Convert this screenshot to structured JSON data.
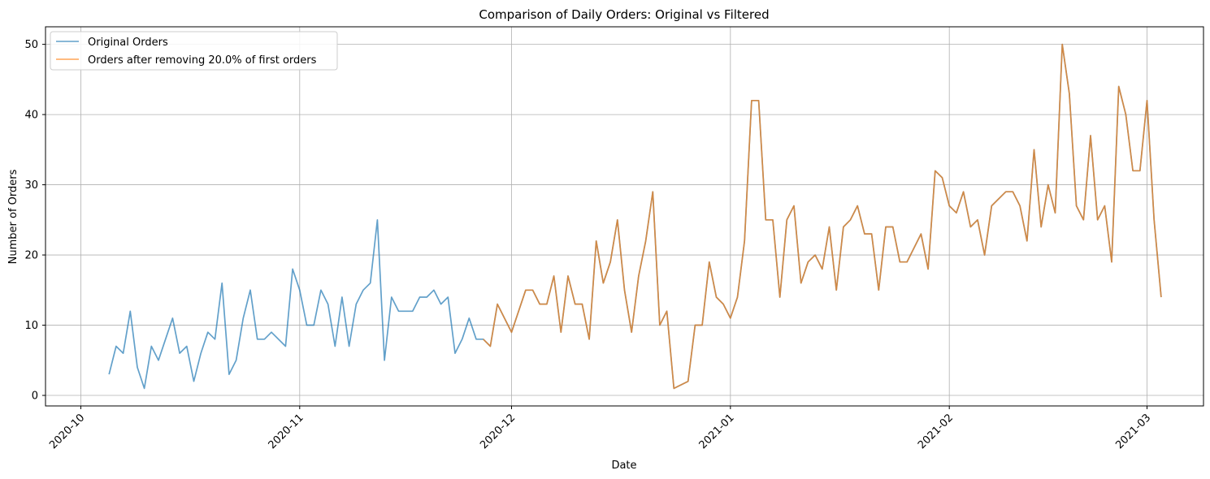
{
  "chart_data": {
    "type": "line",
    "title": "Comparison of Daily Orders: Original vs Filtered",
    "xlabel": "Date",
    "ylabel": "Number of Orders",
    "x_axis": {
      "type": "date",
      "range": [
        "2020-09-26",
        "2021-03-09"
      ],
      "ticks": [
        "2020-10-01",
        "2020-11-01",
        "2020-12-01",
        "2021-01-01",
        "2021-02-01",
        "2021-03-01"
      ],
      "tick_labels": [
        "2020-10",
        "2020-11",
        "2020-12",
        "2021-01",
        "2021-02",
        "2021-03"
      ],
      "tick_rotation": 45
    },
    "y_axis": {
      "range": [
        -1.5,
        52.5
      ],
      "ticks": [
        0,
        10,
        20,
        30,
        40,
        50
      ],
      "tick_labels": [
        "0",
        "10",
        "20",
        "30",
        "40",
        "50"
      ]
    },
    "grid": true,
    "legend_position": "top-left",
    "series": [
      {
        "name": "Original Orders",
        "color": "#1f77b4",
        "points": [
          [
            "2020-10-05",
            3
          ],
          [
            "2020-10-06",
            7
          ],
          [
            "2020-10-07",
            6
          ],
          [
            "2020-10-08",
            12
          ],
          [
            "2020-10-09",
            4
          ],
          [
            "2020-10-10",
            1
          ],
          [
            "2020-10-11",
            7
          ],
          [
            "2020-10-12",
            5
          ],
          [
            "2020-10-13",
            8
          ],
          [
            "2020-10-14",
            11
          ],
          [
            "2020-10-15",
            6
          ],
          [
            "2020-10-16",
            7
          ],
          [
            "2020-10-17",
            2
          ],
          [
            "2020-10-18",
            6
          ],
          [
            "2020-10-19",
            9
          ],
          [
            "2020-10-20",
            8
          ],
          [
            "2020-10-21",
            16
          ],
          [
            "2020-10-22",
            3
          ],
          [
            "2020-10-23",
            5
          ],
          [
            "2020-10-24",
            11
          ],
          [
            "2020-10-25",
            15
          ],
          [
            "2020-10-26",
            8
          ],
          [
            "2020-10-27",
            8
          ],
          [
            "2020-10-28",
            9
          ],
          [
            "2020-10-30",
            7
          ],
          [
            "2020-10-31",
            18
          ],
          [
            "2020-11-01",
            15
          ],
          [
            "2020-11-02",
            10
          ],
          [
            "2020-11-03",
            10
          ],
          [
            "2020-11-04",
            15
          ],
          [
            "2020-11-05",
            13
          ],
          [
            "2020-11-06",
            7
          ],
          [
            "2020-11-07",
            14
          ],
          [
            "2020-11-08",
            7
          ],
          [
            "2020-11-09",
            13
          ],
          [
            "2020-11-10",
            15
          ],
          [
            "2020-11-11",
            16
          ],
          [
            "2020-11-12",
            25
          ],
          [
            "2020-11-13",
            5
          ],
          [
            "2020-11-14",
            14
          ],
          [
            "2020-11-15",
            12
          ],
          [
            "2020-11-17",
            12
          ],
          [
            "2020-11-18",
            14
          ],
          [
            "2020-11-19",
            14
          ],
          [
            "2020-11-20",
            15
          ],
          [
            "2020-11-21",
            13
          ],
          [
            "2020-11-22",
            14
          ],
          [
            "2020-11-23",
            6
          ],
          [
            "2020-11-24",
            8
          ],
          [
            "2020-11-25",
            11
          ],
          [
            "2020-11-26",
            8
          ],
          [
            "2020-11-27",
            8
          ],
          [
            "2020-11-28",
            7
          ],
          [
            "2020-11-29",
            13
          ],
          [
            "2020-12-01",
            9
          ],
          [
            "2020-12-03",
            15
          ],
          [
            "2020-12-04",
            15
          ],
          [
            "2020-12-05",
            13
          ],
          [
            "2020-12-06",
            13
          ],
          [
            "2020-12-07",
            17
          ],
          [
            "2020-12-08",
            9
          ],
          [
            "2020-12-09",
            17
          ],
          [
            "2020-12-10",
            13
          ],
          [
            "2020-12-11",
            13
          ],
          [
            "2020-12-12",
            8
          ],
          [
            "2020-12-13",
            22
          ],
          [
            "2020-12-14",
            16
          ],
          [
            "2020-12-15",
            19
          ],
          [
            "2020-12-16",
            25
          ],
          [
            "2020-12-17",
            15
          ],
          [
            "2020-12-18",
            9
          ],
          [
            "2020-12-19",
            17
          ],
          [
            "2020-12-20",
            22
          ],
          [
            "2020-12-21",
            29
          ],
          [
            "2020-12-22",
            10
          ],
          [
            "2020-12-23",
            12
          ],
          [
            "2020-12-24",
            1
          ],
          [
            "2020-12-26",
            2
          ],
          [
            "2020-12-27",
            10
          ],
          [
            "2020-12-28",
            10
          ],
          [
            "2020-12-29",
            19
          ],
          [
            "2020-12-30",
            14
          ],
          [
            "2020-12-31",
            13
          ],
          [
            "2021-01-01",
            11
          ],
          [
            "2021-01-02",
            14
          ],
          [
            "2021-01-03",
            22
          ],
          [
            "2021-01-04",
            42
          ],
          [
            "2021-01-05",
            42
          ],
          [
            "2021-01-06",
            25
          ],
          [
            "2021-01-07",
            25
          ],
          [
            "2021-01-08",
            14
          ],
          [
            "2021-01-09",
            25
          ],
          [
            "2021-01-10",
            27
          ],
          [
            "2021-01-11",
            16
          ],
          [
            "2021-01-12",
            19
          ],
          [
            "2021-01-13",
            20
          ],
          [
            "2021-01-14",
            18
          ],
          [
            "2021-01-15",
            24
          ],
          [
            "2021-01-16",
            15
          ],
          [
            "2021-01-17",
            24
          ],
          [
            "2021-01-18",
            25
          ],
          [
            "2021-01-19",
            27
          ],
          [
            "2021-01-20",
            23
          ],
          [
            "2021-01-21",
            23
          ],
          [
            "2021-01-22",
            15
          ],
          [
            "2021-01-23",
            24
          ],
          [
            "2021-01-24",
            24
          ],
          [
            "2021-01-25",
            19
          ],
          [
            "2021-01-26",
            19
          ],
          [
            "2021-01-28",
            23
          ],
          [
            "2021-01-29",
            18
          ],
          [
            "2021-01-30",
            32
          ],
          [
            "2021-01-31",
            31
          ],
          [
            "2021-02-01",
            27
          ],
          [
            "2021-02-02",
            26
          ],
          [
            "2021-02-03",
            29
          ],
          [
            "2021-02-04",
            24
          ],
          [
            "2021-02-05",
            25
          ],
          [
            "2021-02-06",
            20
          ],
          [
            "2021-02-07",
            27
          ],
          [
            "2021-02-09",
            29
          ],
          [
            "2021-02-10",
            29
          ],
          [
            "2021-02-11",
            27
          ],
          [
            "2021-02-12",
            22
          ],
          [
            "2021-02-13",
            35
          ],
          [
            "2021-02-14",
            24
          ],
          [
            "2021-02-15",
            30
          ],
          [
            "2021-02-16",
            26
          ],
          [
            "2021-02-17",
            50
          ],
          [
            "2021-02-18",
            43
          ],
          [
            "2021-02-19",
            27
          ],
          [
            "2021-02-20",
            25
          ],
          [
            "2021-02-21",
            37
          ],
          [
            "2021-02-22",
            25
          ],
          [
            "2021-02-23",
            27
          ],
          [
            "2021-02-24",
            19
          ],
          [
            "2021-02-25",
            44
          ],
          [
            "2021-02-26",
            40
          ],
          [
            "2021-02-27",
            32
          ],
          [
            "2021-02-28",
            32
          ],
          [
            "2021-03-01",
            42
          ],
          [
            "2021-03-02",
            25
          ],
          [
            "2021-03-03",
            14
          ]
        ]
      },
      {
        "name": "Orders after removing 20.0% of first orders",
        "color": "#ff7f0e",
        "points": [
          [
            "2020-11-27",
            8
          ],
          [
            "2020-11-28",
            7
          ],
          [
            "2020-11-29",
            13
          ],
          [
            "2020-12-01",
            9
          ],
          [
            "2020-12-03",
            15
          ],
          [
            "2020-12-04",
            15
          ],
          [
            "2020-12-05",
            13
          ],
          [
            "2020-12-06",
            13
          ],
          [
            "2020-12-07",
            17
          ],
          [
            "2020-12-08",
            9
          ],
          [
            "2020-12-09",
            17
          ],
          [
            "2020-12-10",
            13
          ],
          [
            "2020-12-11",
            13
          ],
          [
            "2020-12-12",
            8
          ],
          [
            "2020-12-13",
            22
          ],
          [
            "2020-12-14",
            16
          ],
          [
            "2020-12-15",
            19
          ],
          [
            "2020-12-16",
            25
          ],
          [
            "2020-12-17",
            15
          ],
          [
            "2020-12-18",
            9
          ],
          [
            "2020-12-19",
            17
          ],
          [
            "2020-12-20",
            22
          ],
          [
            "2020-12-21",
            29
          ],
          [
            "2020-12-22",
            10
          ],
          [
            "2020-12-23",
            12
          ],
          [
            "2020-12-24",
            1
          ],
          [
            "2020-12-26",
            2
          ],
          [
            "2020-12-27",
            10
          ],
          [
            "2020-12-28",
            10
          ],
          [
            "2020-12-29",
            19
          ],
          [
            "2020-12-30",
            14
          ],
          [
            "2020-12-31",
            13
          ],
          [
            "2021-01-01",
            11
          ],
          [
            "2021-01-02",
            14
          ],
          [
            "2021-01-03",
            22
          ],
          [
            "2021-01-04",
            42
          ],
          [
            "2021-01-05",
            42
          ],
          [
            "2021-01-06",
            25
          ],
          [
            "2021-01-07",
            25
          ],
          [
            "2021-01-08",
            14
          ],
          [
            "2021-01-09",
            25
          ],
          [
            "2021-01-10",
            27
          ],
          [
            "2021-01-11",
            16
          ],
          [
            "2021-01-12",
            19
          ],
          [
            "2021-01-13",
            20
          ],
          [
            "2021-01-14",
            18
          ],
          [
            "2021-01-15",
            24
          ],
          [
            "2021-01-16",
            15
          ],
          [
            "2021-01-17",
            24
          ],
          [
            "2021-01-18",
            25
          ],
          [
            "2021-01-19",
            27
          ],
          [
            "2021-01-20",
            23
          ],
          [
            "2021-01-21",
            23
          ],
          [
            "2021-01-22",
            15
          ],
          [
            "2021-01-23",
            24
          ],
          [
            "2021-01-24",
            24
          ],
          [
            "2021-01-25",
            19
          ],
          [
            "2021-01-26",
            19
          ],
          [
            "2021-01-28",
            23
          ],
          [
            "2021-01-29",
            18
          ],
          [
            "2021-01-30",
            32
          ],
          [
            "2021-01-31",
            31
          ],
          [
            "2021-02-01",
            27
          ],
          [
            "2021-02-02",
            26
          ],
          [
            "2021-02-03",
            29
          ],
          [
            "2021-02-04",
            24
          ],
          [
            "2021-02-05",
            25
          ],
          [
            "2021-02-06",
            20
          ],
          [
            "2021-02-07",
            27
          ],
          [
            "2021-02-09",
            29
          ],
          [
            "2021-02-10",
            29
          ],
          [
            "2021-02-11",
            27
          ],
          [
            "2021-02-12",
            22
          ],
          [
            "2021-02-13",
            35
          ],
          [
            "2021-02-14",
            24
          ],
          [
            "2021-02-15",
            30
          ],
          [
            "2021-02-16",
            26
          ],
          [
            "2021-02-17",
            50
          ],
          [
            "2021-02-18",
            43
          ],
          [
            "2021-02-19",
            27
          ],
          [
            "2021-02-20",
            25
          ],
          [
            "2021-02-21",
            37
          ],
          [
            "2021-02-22",
            25
          ],
          [
            "2021-02-23",
            27
          ],
          [
            "2021-02-24",
            19
          ],
          [
            "2021-02-25",
            44
          ],
          [
            "2021-02-26",
            40
          ],
          [
            "2021-02-27",
            32
          ],
          [
            "2021-02-28",
            32
          ],
          [
            "2021-03-01",
            42
          ],
          [
            "2021-03-02",
            25
          ],
          [
            "2021-03-03",
            14
          ]
        ]
      }
    ]
  }
}
